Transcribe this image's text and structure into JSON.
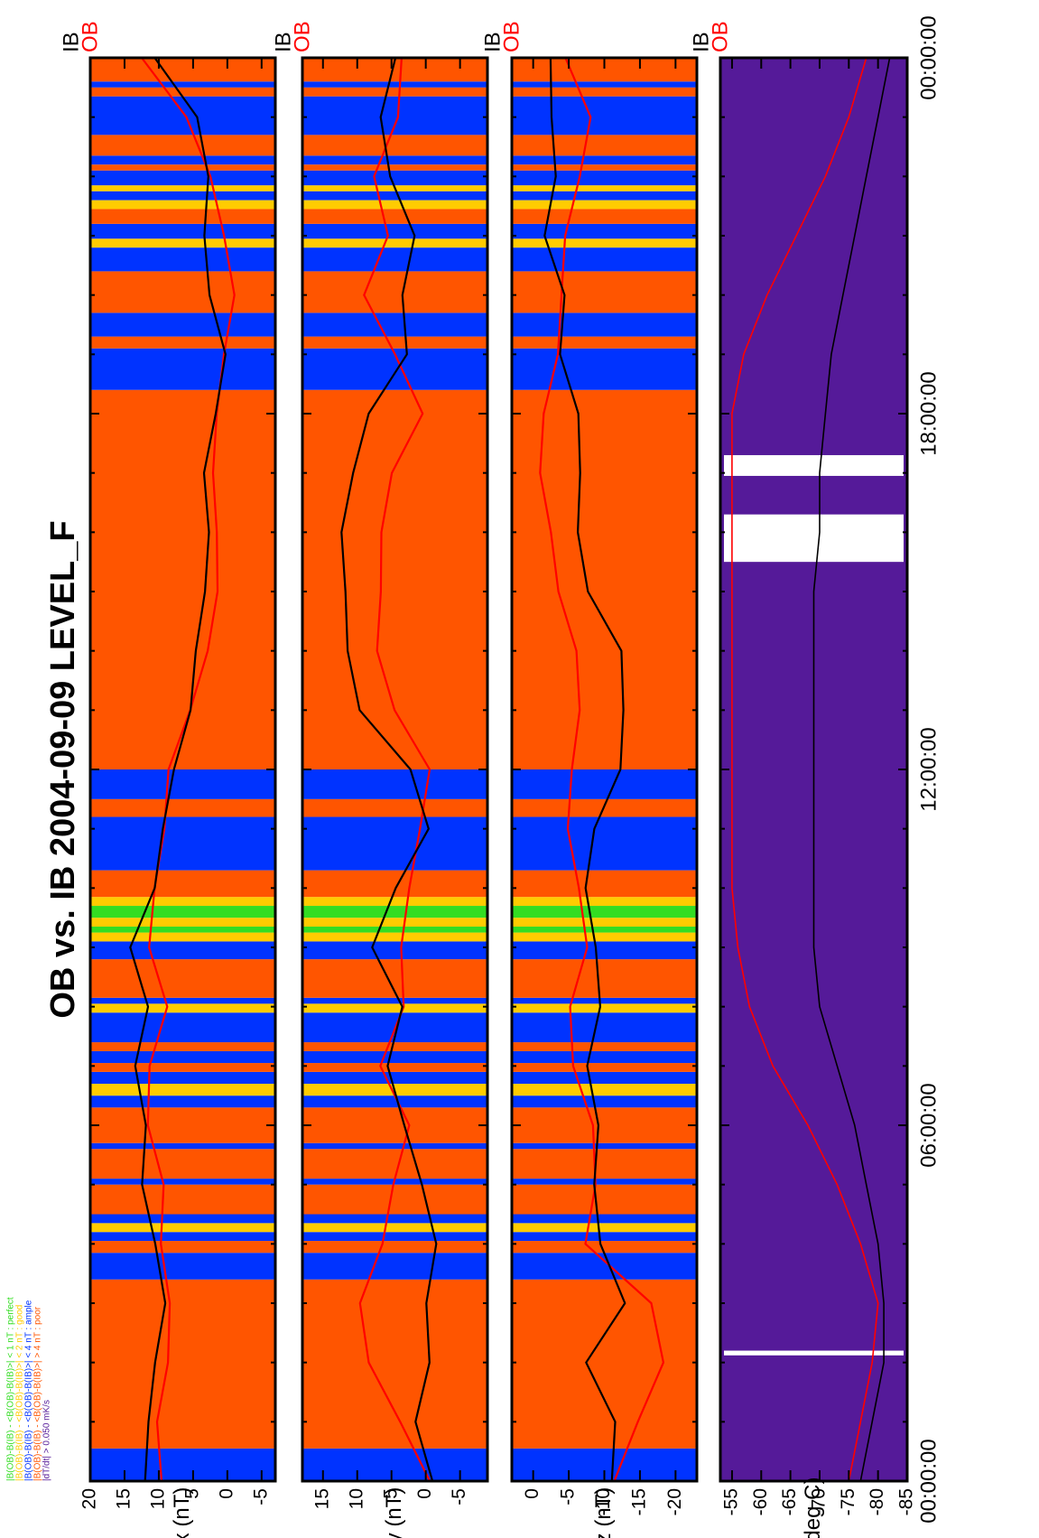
{
  "page_title": "OB vs. IB    2004-09-09 LEVEL_F",
  "colors": {
    "perfect": "#33dd22",
    "good": "#ffcc00",
    "ample": "#0033ff",
    "poor": "#ff5500",
    "dtdt": "#551a99",
    "ob_line": "#ff0000",
    "ib_line": "#000000"
  },
  "legend": [
    {
      "key": "perfect",
      "text": "|B(OB)-B(IB) - <B(OB)-B(IB)>| < 1 nT  : perfect"
    },
    {
      "key": "good",
      "text": "|B(OB)-B(IB) - <B(OB)-B(IB)>| < 2 nT  : good"
    },
    {
      "key": "ample",
      "text": "|B(OB)-B(IB) - <B(OB)-B(IB)>| < 4 nT  : ample"
    },
    {
      "key": "poor",
      "text": "|B(OB)-B(IB) - <B(OB)-B(IB)>| > 4 nT  : poor"
    },
    {
      "key": "dtdt",
      "text": "|dT/dt|                              > 0.050  mK/s"
    }
  ],
  "time_axis": {
    "ticks": [
      "00:00:00",
      "06:00:00",
      "12:00:00",
      "18:00:00",
      "00:00:00"
    ],
    "tick_hours": [
      0,
      6,
      12,
      18,
      24
    ]
  },
  "series_labels": {
    "ob": "OB",
    "ib": "IB"
  },
  "quality_segments": [
    {
      "start": 0.0,
      "end": 0.55,
      "q": "ample"
    },
    {
      "start": 0.55,
      "end": 3.4,
      "q": "poor"
    },
    {
      "start": 3.4,
      "end": 3.85,
      "q": "ample"
    },
    {
      "start": 3.85,
      "end": 4.05,
      "q": "poor"
    },
    {
      "start": 4.05,
      "end": 4.2,
      "q": "ample"
    },
    {
      "start": 4.2,
      "end": 4.35,
      "q": "good"
    },
    {
      "start": 4.35,
      "end": 4.5,
      "q": "ample"
    },
    {
      "start": 4.5,
      "end": 5.0,
      "q": "poor"
    },
    {
      "start": 5.0,
      "end": 5.1,
      "q": "ample"
    },
    {
      "start": 5.1,
      "end": 5.6,
      "q": "poor"
    },
    {
      "start": 5.6,
      "end": 5.7,
      "q": "ample"
    },
    {
      "start": 5.7,
      "end": 6.3,
      "q": "poor"
    },
    {
      "start": 6.3,
      "end": 6.5,
      "q": "ample"
    },
    {
      "start": 6.5,
      "end": 6.7,
      "q": "good"
    },
    {
      "start": 6.7,
      "end": 6.9,
      "q": "ample"
    },
    {
      "start": 6.9,
      "end": 7.05,
      "q": "poor"
    },
    {
      "start": 7.05,
      "end": 7.25,
      "q": "ample"
    },
    {
      "start": 7.25,
      "end": 7.4,
      "q": "poor"
    },
    {
      "start": 7.4,
      "end": 7.9,
      "q": "ample"
    },
    {
      "start": 7.9,
      "end": 8.05,
      "q": "good"
    },
    {
      "start": 8.05,
      "end": 8.15,
      "q": "ample"
    },
    {
      "start": 8.15,
      "end": 8.8,
      "q": "poor"
    },
    {
      "start": 8.8,
      "end": 9.1,
      "q": "ample"
    },
    {
      "start": 9.1,
      "end": 9.25,
      "q": "good"
    },
    {
      "start": 9.25,
      "end": 9.35,
      "q": "perfect"
    },
    {
      "start": 9.35,
      "end": 9.5,
      "q": "good"
    },
    {
      "start": 9.5,
      "end": 9.7,
      "q": "perfect"
    },
    {
      "start": 9.7,
      "end": 9.85,
      "q": "good"
    },
    {
      "start": 9.85,
      "end": 10.3,
      "q": "poor"
    },
    {
      "start": 10.3,
      "end": 11.2,
      "q": "ample"
    },
    {
      "start": 11.2,
      "end": 11.5,
      "q": "poor"
    },
    {
      "start": 11.5,
      "end": 12.0,
      "q": "ample"
    },
    {
      "start": 12.0,
      "end": 18.4,
      "q": "poor"
    },
    {
      "start": 18.4,
      "end": 19.1,
      "q": "ample"
    },
    {
      "start": 19.1,
      "end": 19.3,
      "q": "poor"
    },
    {
      "start": 19.3,
      "end": 19.7,
      "q": "ample"
    },
    {
      "start": 19.7,
      "end": 20.4,
      "q": "poor"
    },
    {
      "start": 20.4,
      "end": 20.8,
      "q": "ample"
    },
    {
      "start": 20.8,
      "end": 20.95,
      "q": "good"
    },
    {
      "start": 20.95,
      "end": 21.2,
      "q": "ample"
    },
    {
      "start": 21.2,
      "end": 21.45,
      "q": "poor"
    },
    {
      "start": 21.45,
      "end": 21.6,
      "q": "good"
    },
    {
      "start": 21.6,
      "end": 21.75,
      "q": "ample"
    },
    {
      "start": 21.75,
      "end": 21.85,
      "q": "good"
    },
    {
      "start": 21.85,
      "end": 22.1,
      "q": "ample"
    },
    {
      "start": 22.1,
      "end": 22.2,
      "q": "poor"
    },
    {
      "start": 22.2,
      "end": 22.35,
      "q": "ample"
    },
    {
      "start": 22.35,
      "end": 22.7,
      "q": "poor"
    },
    {
      "start": 22.7,
      "end": 23.35,
      "q": "ample"
    },
    {
      "start": 23.35,
      "end": 23.5,
      "q": "poor"
    },
    {
      "start": 23.5,
      "end": 23.6,
      "q": "ample"
    },
    {
      "start": 23.6,
      "end": 24.0,
      "q": "poor"
    }
  ],
  "chart_data": [
    {
      "type": "line",
      "ylabel": "Bx (nT)",
      "ylim": [
        -7,
        20
      ],
      "yticks": [
        "20",
        "15",
        "10",
        "5",
        "0",
        "-5"
      ],
      "ytick_values": [
        20,
        15,
        10,
        5,
        0,
        -5
      ],
      "x": [
        0,
        1,
        2,
        3,
        4,
        5,
        6,
        7,
        8,
        9,
        10,
        11,
        12,
        13,
        14,
        15,
        16,
        17,
        18,
        19,
        20,
        21,
        22,
        23,
        24
      ],
      "series": [
        {
          "name": "OB",
          "color": "#ff0000",
          "values": [
            9,
            10,
            9,
            9,
            10,
            9,
            11,
            11,
            9,
            12,
            11,
            9,
            8,
            5,
            3,
            2,
            2,
            2,
            1,
            0,
            -1,
            1,
            3,
            6,
            12
          ]
        },
        {
          "name": "IB",
          "color": "#000000",
          "values": [
            12,
            11,
            10,
            9,
            11,
            13,
            12,
            13,
            11,
            14,
            11,
            10,
            8,
            5,
            4,
            3,
            3,
            4,
            2,
            0,
            2,
            3,
            3,
            5,
            11
          ]
        }
      ]
    },
    {
      "type": "line",
      "ylabel": "By (nT)",
      "ylim": [
        -9,
        18
      ],
      "yticks": [
        "15",
        "10",
        "5",
        "0",
        "-5"
      ],
      "ytick_values": [
        15,
        10,
        5,
        0,
        -5
      ],
      "x": [
        0,
        1,
        2,
        3,
        4,
        5,
        6,
        7,
        8,
        9,
        10,
        11,
        12,
        13,
        14,
        15,
        16,
        17,
        18,
        19,
        20,
        21,
        22,
        23,
        24
      ],
      "series": [
        {
          "name": "OB",
          "color": "#ff0000",
          "values": [
            0,
            4,
            8,
            9,
            6,
            5,
            3,
            7,
            3,
            3,
            2,
            1,
            0,
            5,
            7,
            6,
            6,
            5,
            1,
            5,
            9,
            5,
            7,
            4,
            4
          ]
        },
        {
          "name": "IB",
          "color": "#000000",
          "values": [
            -1,
            2,
            0,
            0,
            -2,
            0,
            3,
            6,
            4,
            8,
            4,
            -1,
            2,
            10,
            12,
            12,
            12,
            10,
            8,
            3,
            4,
            2,
            5,
            6,
            4
          ]
        }
      ]
    },
    {
      "type": "line",
      "ylabel": "Bz (nT)",
      "ylim": [
        -23,
        3
      ],
      "yticks": [
        "0",
        "-5",
        "-10",
        "-15",
        "-20"
      ],
      "ytick_values": [
        0,
        -5,
        -10,
        -15,
        -20
      ],
      "x": [
        0,
        1,
        2,
        3,
        4,
        5,
        6,
        7,
        8,
        9,
        10,
        11,
        12,
        13,
        14,
        15,
        16,
        17,
        18,
        19,
        20,
        21,
        22,
        23,
        24
      ],
      "series": [
        {
          "name": "OB",
          "color": "#ff0000",
          "values": [
            -12,
            -15,
            -18,
            -16,
            -7,
            -9,
            -9,
            -6,
            -5,
            -7,
            -6,
            -5,
            -6,
            -7,
            -6,
            -3,
            -2,
            -1,
            -2,
            -4,
            -4,
            -4,
            -6,
            -8,
            -5
          ]
        },
        {
          "name": "IB",
          "color": "#000000",
          "values": [
            -11,
            -12,
            -8,
            -13,
            -9,
            -8,
            -9,
            -8,
            -10,
            -9,
            -7,
            -8,
            -12,
            -13,
            -13,
            -8,
            -6,
            -6,
            -6,
            -4,
            -5,
            -2,
            -3,
            -2,
            -2
          ]
        }
      ]
    },
    {
      "type": "line",
      "ylabel": "T (deg C)",
      "ylim": [
        -85,
        -53
      ],
      "yticks": [
        "-55",
        "-60",
        "-65",
        "-70",
        "-75",
        "-80",
        "-85"
      ],
      "ytick_values": [
        -55,
        -60,
        -65,
        -70,
        -75,
        -80,
        -85
      ],
      "x": [
        0,
        1,
        2,
        3,
        4,
        5,
        6,
        7,
        8,
        9,
        10,
        11,
        12,
        13,
        14,
        15,
        16,
        17,
        18,
        19,
        20,
        21,
        22,
        23,
        24
      ],
      "series": [
        {
          "name": "OB",
          "color": "#ff0000",
          "values": [
            -75,
            -77,
            -79,
            -80,
            -77,
            -73,
            -68,
            -62,
            -58,
            -56,
            -55,
            -55,
            -55,
            -55,
            -55,
            -55,
            -55,
            -55,
            -55,
            -57,
            -61,
            -66,
            -71,
            -75,
            -78
          ]
        },
        {
          "name": "IB",
          "color": "#000000",
          "values": [
            -77,
            -79,
            -81,
            -81,
            -80,
            -78,
            -76,
            -73,
            -70,
            -69,
            -69,
            -69,
            -69,
            -69,
            -69,
            -69,
            -70,
            -70,
            -71,
            -72,
            -74,
            -76,
            -78,
            -80,
            -82
          ]
        }
      ]
    }
  ]
}
